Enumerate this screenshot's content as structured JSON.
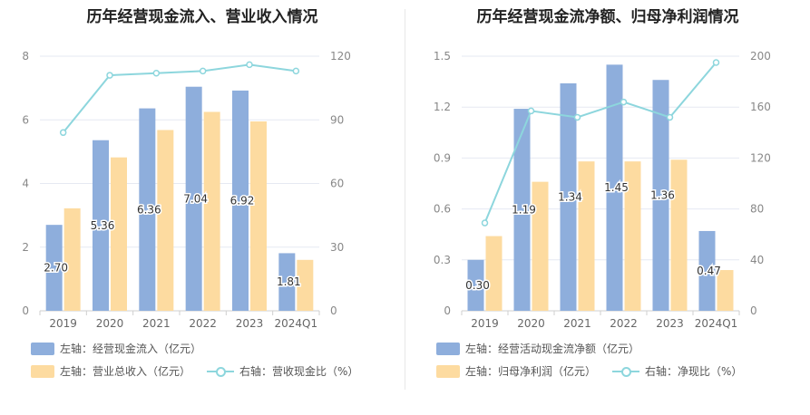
{
  "chart_data": [
    {
      "id": "left",
      "type": "bar",
      "title": "历年经营现金流入、营业收入情况",
      "categories": [
        "2019",
        "2020",
        "2021",
        "2022",
        "2023",
        "2024Q1"
      ],
      "series": [
        {
          "name": "左轴：经营现金流入（亿元）",
          "axis": "left",
          "kind": "bar",
          "color": "#8eaedc",
          "values": [
            2.7,
            5.36,
            6.36,
            7.04,
            6.92,
            1.81
          ],
          "labels": [
            "2.70",
            "5.36",
            "6.36",
            "7.04",
            "6.92",
            "1.81"
          ]
        },
        {
          "name": "左轴：营业总收入（亿元）",
          "axis": "left",
          "kind": "bar",
          "color": "#fddba0",
          "values": [
            3.22,
            4.82,
            5.68,
            6.25,
            5.95,
            1.6
          ]
        },
        {
          "name": "右轴：营收现金比（%）",
          "axis": "right",
          "kind": "line",
          "color": "#8dd6dd",
          "values": [
            84,
            111,
            112,
            113,
            116,
            113
          ]
        }
      ],
      "left_axis": {
        "min": 0,
        "max": 8,
        "ticks": [
          "0",
          "2",
          "4",
          "6",
          "8"
        ]
      },
      "right_axis": {
        "min": 0,
        "max": 120,
        "ticks": [
          "0",
          "30",
          "60",
          "90",
          "120"
        ]
      },
      "grid": true,
      "legend_position": "bottom"
    },
    {
      "id": "right",
      "type": "bar",
      "title": "历年经营现金流净额、归母净利润情况",
      "categories": [
        "2019",
        "2020",
        "2021",
        "2022",
        "2023",
        "2024Q1"
      ],
      "series": [
        {
          "name": "左轴：经营活动现金流净额（亿元）",
          "axis": "left",
          "kind": "bar",
          "color": "#8eaedc",
          "values": [
            0.3,
            1.19,
            1.34,
            1.45,
            1.36,
            0.47
          ],
          "labels": [
            "0.30",
            "1.19",
            "1.34",
            "1.45",
            "1.36",
            "0.47"
          ]
        },
        {
          "name": "左轴：归母净利润（亿元）",
          "axis": "left",
          "kind": "bar",
          "color": "#fddba0",
          "values": [
            0.44,
            0.76,
            0.88,
            0.88,
            0.89,
            0.24
          ]
        },
        {
          "name": "右轴：净现比（%）",
          "axis": "right",
          "kind": "line",
          "color": "#8dd6dd",
          "values": [
            69,
            157,
            152,
            164,
            152,
            195
          ]
        }
      ],
      "left_axis": {
        "min": 0,
        "max": 1.5,
        "ticks": [
          "0",
          "0.3",
          "0.6",
          "0.9",
          "1.2",
          "1.5"
        ]
      },
      "right_axis": {
        "min": 0,
        "max": 200,
        "ticks": [
          "0",
          "40",
          "80",
          "120",
          "160",
          "200"
        ]
      },
      "grid": true,
      "legend_position": "bottom"
    }
  ]
}
